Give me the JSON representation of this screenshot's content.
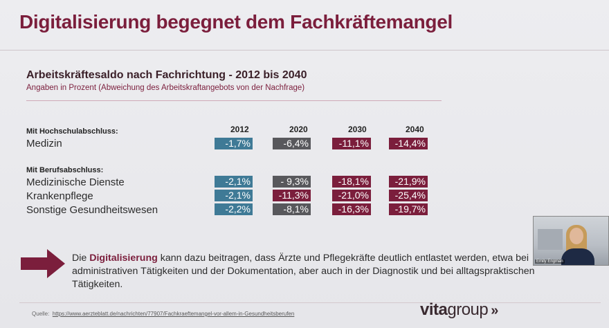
{
  "slide": {
    "title": "Digitalisierung begegnet dem Fachkräftemangel",
    "subtitle": "Arbeitskräftesaldo nach Fachrichtung - 2012 bis 2040",
    "subnote": "Angaben in Prozent (Abweichung des Arbeitskraftangebots von der Nachfrage)"
  },
  "table": {
    "years": [
      "2012",
      "2020",
      "2030",
      "2040"
    ],
    "group_university": "Mit Hochschulabschluss:",
    "group_vocational": "Mit Berufsabschluss:",
    "rows": [
      {
        "label": "Medizin",
        "values": [
          "-1,7%",
          "-6,4%",
          "-11,1%",
          "-14,4%"
        ]
      },
      {
        "label": "Medizinische Dienste",
        "values": [
          "-2,1%",
          "- 9,3%",
          "-18,1%",
          "-21,9%"
        ]
      },
      {
        "label": "Krankenpflege",
        "values": [
          "-2,1%",
          "-11,3%",
          "-21,0%",
          "-25,4%"
        ]
      },
      {
        "label": "Sonstige Gesundheitswesen",
        "values": [
          "-2,2%",
          "-8,1%",
          "-16,3%",
          "-19,7%"
        ]
      }
    ],
    "colors": {
      "blue": "#3f7a96",
      "gray": "#58585c",
      "red": "#7b1e3c"
    }
  },
  "statement": {
    "prefix": "Die ",
    "highlight": "Digitalisierung",
    "rest": " kann dazu beitragen, dass Ärzte und Pflegekräfte deutlich entlastet werden, etwa bei administrativen Tätigkeiten und der Dokumentation, aber auch in der Diagnostik und bei alltagspraktischen Tätigkeiten."
  },
  "footer": {
    "source_label": "Quelle:",
    "source_url": "https://www.aerzteblatt.de/nachrichten/77907/Fachkraeftemangel-vor-allem-in-Gesundheitsberufen",
    "logo_vita": "vita",
    "logo_group": "group",
    "logo_chevrons": "»"
  },
  "webcam": {
    "participant_name": "Emily Engman"
  },
  "icons": {
    "arrow": "right-arrow-icon"
  }
}
